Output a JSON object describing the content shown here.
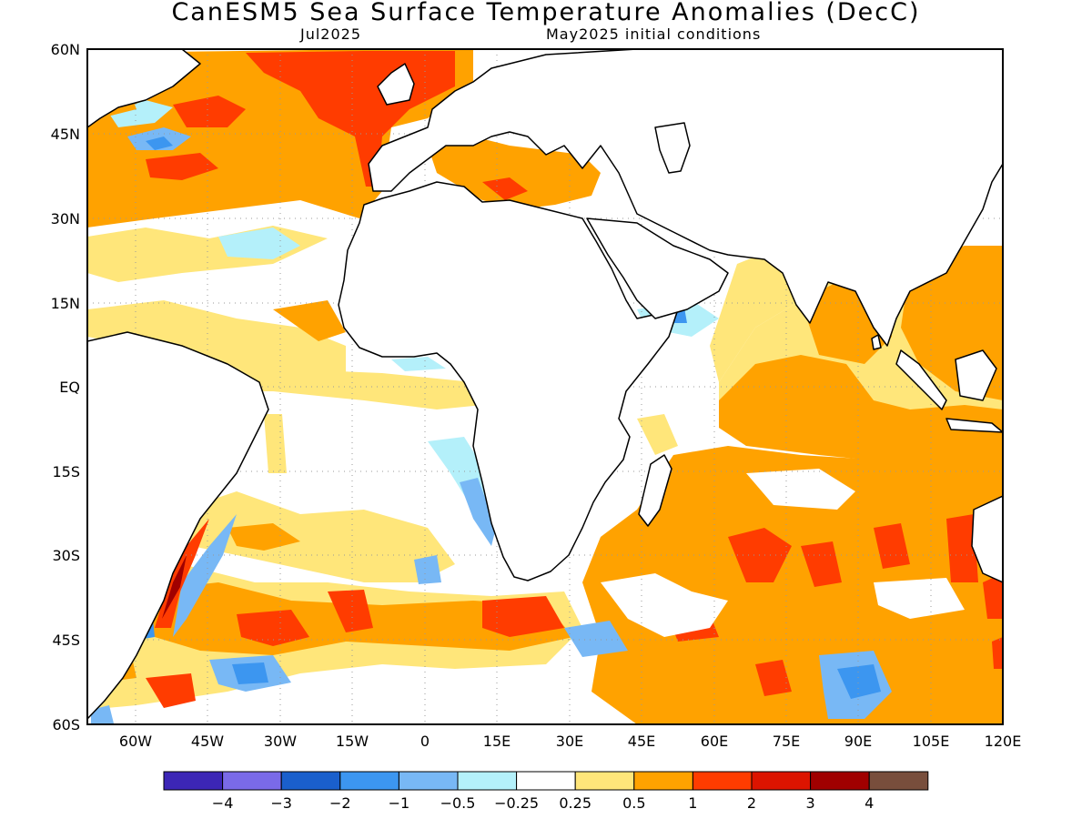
{
  "title": "CanESM5 Sea Surface Temperature Anomalies (DecC)",
  "subtitle_left": "Jul2025",
  "subtitle_right": "May2025 initial conditions",
  "map": {
    "lon_range": [
      -70,
      120
    ],
    "lat_range": [
      -60,
      60
    ],
    "lat_labels": [
      "60N",
      "45N",
      "30N",
      "15N",
      "EQ",
      "15S",
      "30S",
      "45S",
      "60S"
    ],
    "lon_labels": [
      "60W",
      "45W",
      "30W",
      "15W",
      "0",
      "15E",
      "30E",
      "45E",
      "60E",
      "75E",
      "90E",
      "105E",
      "120E"
    ],
    "gridlines": "dotted",
    "land_color": "#ffffff",
    "coastline_color": "#000000"
  },
  "colorbar": {
    "colors": [
      "#3c26b6",
      "#7a6ae8",
      "#1a5fcc",
      "#3c96f0",
      "#78b8f5",
      "#b4f0fa",
      "#ffffff",
      "#ffe67a",
      "#ffa200",
      "#ff3c00",
      "#dc1400",
      "#a00000",
      "#784e3c"
    ],
    "labels": [
      "−4",
      "−3",
      "−2",
      "−1",
      "−0.5",
      "−0.25",
      "0.25",
      "0.5",
      "1",
      "2",
      "3",
      "4"
    ]
  }
}
